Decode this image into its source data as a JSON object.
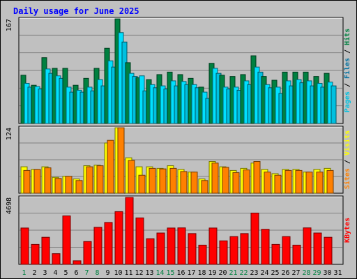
{
  "title": "Daily usage for June 2025",
  "colors": {
    "background": "#c0c0c0",
    "title": "#0000ff",
    "hits": "#008040",
    "files": "#00e0ff",
    "pages": "#00c0e0",
    "visits": "#ffff00",
    "sites": "#ff8000",
    "kbytes": "#ff0000",
    "weekend_day": "#008040",
    "weekday": "#000000"
  },
  "chart_data": [
    {
      "type": "bar",
      "name": "hits-files-pages",
      "categories": [
        "1",
        "2",
        "3",
        "4",
        "5",
        "6",
        "7",
        "8",
        "9",
        "10",
        "11",
        "12",
        "13",
        "14",
        "15",
        "16",
        "17",
        "18",
        "19",
        "20",
        "21",
        "22",
        "23",
        "24",
        "25",
        "26",
        "27",
        "28",
        "29",
        "30",
        "31"
      ],
      "ylim": [
        0,
        167
      ],
      "max_label": "167",
      "legend": [
        {
          "key": "pages",
          "text": "Pages"
        },
        {
          "key": "sep",
          "text": " / "
        },
        {
          "key": "files",
          "text": "Files"
        },
        {
          "key": "sep",
          "text": " / "
        },
        {
          "key": "hits",
          "text": "Hits"
        }
      ],
      "series": [
        {
          "name": "Hits",
          "color": "#008040",
          "values": [
            77,
            61,
            105,
            88,
            88,
            61,
            72,
            88,
            120,
            167,
            97,
            73,
            70,
            78,
            82,
            78,
            72,
            58,
            96,
            77,
            75,
            78,
            108,
            75,
            69,
            82,
            82,
            82,
            75,
            80,
            0
          ]
        },
        {
          "name": "Files",
          "color": "#00e0ff",
          "values": [
            64,
            59,
            87,
            76,
            58,
            53,
            58,
            70,
            100,
            145,
            80,
            76,
            62,
            60,
            68,
            67,
            62,
            50,
            88,
            58,
            58,
            68,
            90,
            62,
            58,
            68,
            70,
            68,
            64,
            66,
            0
          ]
        },
        {
          "name": "Pages",
          "color": "#00c0e0",
          "values": [
            58,
            55,
            80,
            72,
            50,
            50,
            52,
            60,
            90,
            130,
            75,
            52,
            57,
            55,
            60,
            62,
            57,
            40,
            80,
            55,
            53,
            62,
            82,
            57,
            48,
            60,
            65,
            60,
            58,
            60,
            0
          ]
        }
      ]
    },
    {
      "type": "bar",
      "name": "visits-sites",
      "categories": [
        "1",
        "2",
        "3",
        "4",
        "5",
        "6",
        "7",
        "8",
        "9",
        "10",
        "11",
        "12",
        "13",
        "14",
        "15",
        "16",
        "17",
        "18",
        "19",
        "20",
        "21",
        "22",
        "23",
        "24",
        "25",
        "26",
        "27",
        "28",
        "29",
        "30",
        "31"
      ],
      "ylim": [
        0,
        124
      ],
      "max_label": "124",
      "legend": [
        {
          "key": "sites",
          "text": "Sites"
        },
        {
          "key": "sep",
          "text": " / "
        },
        {
          "key": "visits",
          "text": "Visits"
        }
      ],
      "series": [
        {
          "name": "Visits",
          "color": "#ffff00",
          "values": [
            50,
            45,
            50,
            30,
            32,
            27,
            52,
            53,
            95,
            124,
            67,
            50,
            50,
            47,
            52,
            45,
            40,
            27,
            60,
            50,
            43,
            47,
            57,
            45,
            37,
            45,
            45,
            40,
            45,
            47,
            0
          ]
        },
        {
          "name": "Sites",
          "color": "#ff8000",
          "values": [
            43,
            45,
            48,
            28,
            32,
            24,
            50,
            52,
            100,
            124,
            62,
            34,
            47,
            46,
            47,
            41,
            40,
            24,
            57,
            49,
            39,
            44,
            60,
            40,
            34,
            43,
            43,
            40,
            40,
            43,
            0
          ]
        }
      ]
    },
    {
      "type": "bar",
      "name": "kbytes",
      "categories": [
        "1",
        "2",
        "3",
        "4",
        "5",
        "6",
        "7",
        "8",
        "9",
        "10",
        "11",
        "12",
        "13",
        "14",
        "15",
        "16",
        "17",
        "18",
        "19",
        "20",
        "21",
        "22",
        "23",
        "24",
        "25",
        "26",
        "27",
        "28",
        "29",
        "30",
        "31"
      ],
      "ylim": [
        0,
        4698
      ],
      "max_label": "4698",
      "legend": [
        {
          "key": "kbytes",
          "text": "KBytes"
        }
      ],
      "series": [
        {
          "name": "KBytes",
          "color": "#ff0000",
          "values": [
            2550,
            1400,
            1900,
            750,
            3400,
            250,
            1600,
            2600,
            2940,
            3700,
            4698,
            3260,
            1800,
            2200,
            2550,
            2560,
            2160,
            1350,
            2550,
            1650,
            1950,
            2160,
            3600,
            2460,
            1400,
            1950,
            1350,
            2560,
            2200,
            1900,
            0
          ]
        }
      ]
    }
  ],
  "day_labels": [
    {
      "text": "1",
      "weekend": true
    },
    {
      "text": "2",
      "weekend": false
    },
    {
      "text": "3",
      "weekend": false
    },
    {
      "text": "4",
      "weekend": false
    },
    {
      "text": "5",
      "weekend": false
    },
    {
      "text": "6",
      "weekend": false
    },
    {
      "text": "7",
      "weekend": true
    },
    {
      "text": "8",
      "weekend": true
    },
    {
      "text": "9",
      "weekend": false
    },
    {
      "text": "10",
      "weekend": false
    },
    {
      "text": "11",
      "weekend": false
    },
    {
      "text": "12",
      "weekend": false
    },
    {
      "text": "13",
      "weekend": false
    },
    {
      "text": "14",
      "weekend": true
    },
    {
      "text": "15",
      "weekend": true
    },
    {
      "text": "16",
      "weekend": false
    },
    {
      "text": "17",
      "weekend": false
    },
    {
      "text": "18",
      "weekend": false
    },
    {
      "text": "19",
      "weekend": false
    },
    {
      "text": "20",
      "weekend": false
    },
    {
      "text": "21",
      "weekend": true
    },
    {
      "text": "22",
      "weekend": true
    },
    {
      "text": "23",
      "weekend": false
    },
    {
      "text": "24",
      "weekend": false
    },
    {
      "text": "25",
      "weekend": false
    },
    {
      "text": "26",
      "weekend": false
    },
    {
      "text": "27",
      "weekend": false
    },
    {
      "text": "28",
      "weekend": true
    },
    {
      "text": "29",
      "weekend": true
    },
    {
      "text": "30",
      "weekend": false
    },
    {
      "text": "31",
      "weekend": false
    }
  ]
}
